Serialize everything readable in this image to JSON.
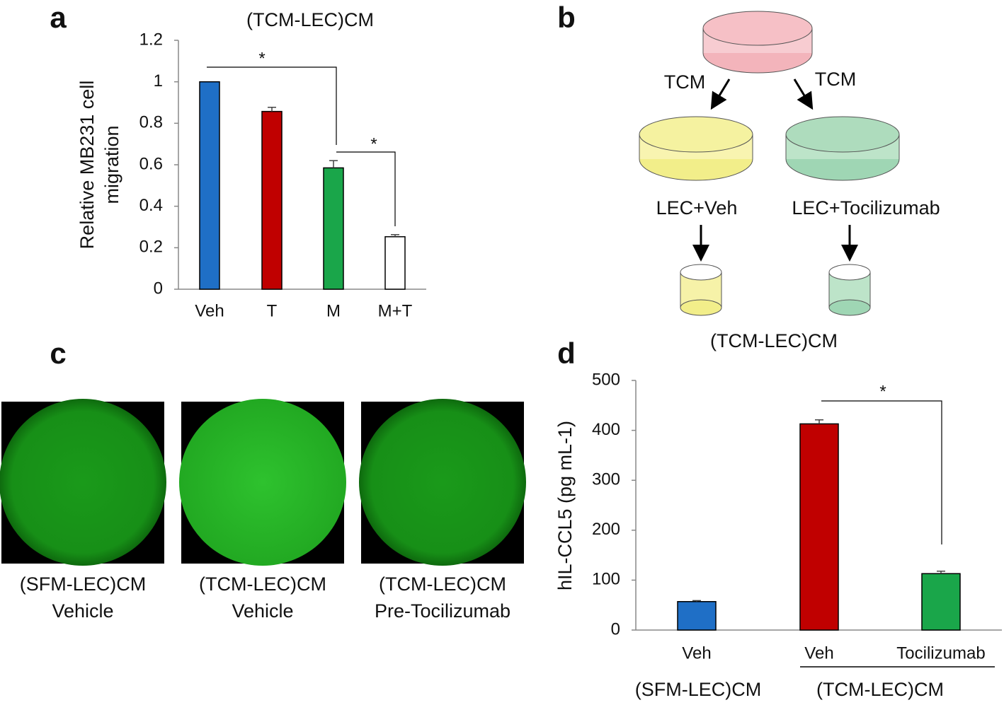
{
  "panel_labels": [
    "a",
    "b",
    "c",
    "d"
  ],
  "chart_data": [
    {
      "type": "bar",
      "title": "(TCM-LEC)CM",
      "y_label": [
        "Relative MB231 cell",
        "migration"
      ],
      "categories": [
        "Veh",
        "T",
        "M",
        "M+T"
      ],
      "values": [
        1,
        0.857,
        0.585,
        0.253
      ],
      "errors": [
        null,
        0.02,
        0.035,
        0.01
      ],
      "colors": [
        "#1f6fc6",
        "#c00000",
        "#1aa64a",
        "#ffffff"
      ],
      "ylim": [
        0,
        1.2
      ],
      "yticks": [
        0,
        0.2,
        0.4,
        0.6,
        0.8,
        1,
        1.2
      ],
      "annotations": [
        "*",
        "*"
      ]
    },
    {
      "type": "bar",
      "y_label": [
        "hIL-CCL5 (pg mL-1)"
      ],
      "categories": [
        "Veh",
        "Veh",
        "Tocilizumab"
      ],
      "groups": [
        "(SFM-LEC)CM",
        "(TCM-LEC)CM"
      ],
      "values": [
        57,
        413,
        113
      ],
      "errors": [
        2,
        8,
        5
      ],
      "colors": [
        "#1f6fc6",
        "#c00000",
        "#1aa64a"
      ],
      "ylim": [
        0,
        500
      ],
      "yticks": [
        0,
        100,
        200,
        300,
        400,
        500
      ],
      "annotations": [
        "*"
      ]
    }
  ],
  "diagram": {
    "arrow_labels": [
      "TCM",
      "TCM"
    ],
    "dishes": [
      "LEC+Veh",
      "LEC+Tocilizumab"
    ],
    "product": "(TCM-LEC)CM"
  },
  "images": [
    {
      "lines": [
        "(SFM-LEC)CM",
        "Vehicle"
      ]
    },
    {
      "lines": [
        "(TCM-LEC)CM",
        "Vehicle"
      ]
    },
    {
      "lines": [
        "(TCM-LEC)CM",
        "Pre-Tocilizumab"
      ]
    }
  ]
}
